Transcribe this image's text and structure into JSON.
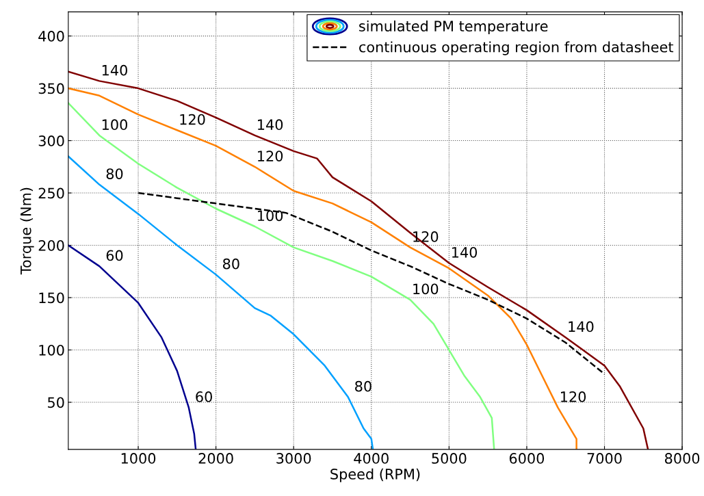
{
  "chart_data": {
    "type": "line",
    "xlabel": "Speed (RPM)",
    "ylabel": "Torque (Nm)",
    "xlim": [
      100,
      8000
    ],
    "ylim": [
      5,
      423
    ],
    "xticks": [
      1000,
      2000,
      3000,
      4000,
      5000,
      6000,
      7000,
      8000
    ],
    "yticks": [
      50,
      100,
      150,
      200,
      250,
      300,
      350,
      400
    ],
    "grid": true,
    "legend": "top right",
    "legend_title": "simulated PM temperature",
    "marker": "none",
    "series": [
      {
        "color": "#00008f",
        "line_style": "solid",
        "x": [
          100,
          500,
          1000,
          1300,
          1500,
          1650,
          1720,
          1740
        ],
        "values": [
          200,
          180,
          145,
          112,
          80,
          45,
          20,
          5
        ]
      },
      {
        "color": "#00a0ff",
        "line_style": "solid",
        "x": [
          100,
          500,
          1000,
          1500,
          2000,
          2500,
          2700,
          3000,
          3400,
          3700,
          3900,
          4000,
          4020
        ],
        "values": [
          285,
          258,
          230,
          200,
          172,
          140,
          133,
          115,
          85,
          55,
          25,
          15,
          5
        ]
      },
      {
        "color": "#80ff80",
        "line_style": "solid",
        "x": [
          100,
          500,
          1000,
          1500,
          2000,
          2500,
          3000,
          3500,
          4000,
          4500,
          4800,
          5000,
          5200,
          5400,
          5550,
          5580
        ],
        "values": [
          336,
          305,
          278,
          255,
          235,
          218,
          198,
          185,
          170,
          148,
          125,
          100,
          75,
          55,
          35,
          5
        ]
      },
      {
        "color": "#ff8000",
        "line_style": "solid",
        "x": [
          100,
          500,
          1000,
          1500,
          2000,
          2500,
          3000,
          3500,
          4000,
          4500,
          5000,
          5500,
          5800,
          6000,
          6200,
          6400,
          6640,
          6640
        ],
        "values": [
          350,
          343,
          325,
          310,
          295,
          275,
          252,
          240,
          222,
          198,
          178,
          152,
          130,
          105,
          75,
          45,
          15,
          5
        ]
      },
      {
        "color": "#800000",
        "line_style": "solid",
        "x": [
          100,
          500,
          1000,
          1500,
          2000,
          2500,
          3000,
          3300,
          3500,
          4000,
          4500,
          5000,
          5500,
          6000,
          6500,
          7000,
          7200,
          7500,
          7560
        ],
        "values": [
          366,
          357,
          350,
          338,
          322,
          305,
          290,
          283,
          265,
          242,
          212,
          183,
          160,
          138,
          112,
          85,
          65,
          25,
          5
        ]
      },
      {
        "name": "continuous operating region from datasheet",
        "color": "#000000",
        "line_style": "dashed",
        "x": [
          1000,
          1500,
          2000,
          2500,
          2900,
          3500,
          4000,
          4500,
          5000,
          5500,
          6000,
          6500,
          7000
        ],
        "values": [
          250,
          245,
          240,
          235,
          231,
          213,
          195,
          180,
          163,
          148,
          130,
          107,
          77
        ]
      }
    ],
    "annotations": [
      {
        "text": "60",
        "x": 500,
        "y": 180
      },
      {
        "text": "60",
        "x": 1650,
        "y": 45
      },
      {
        "text": "80",
        "x": 500,
        "y": 258
      },
      {
        "text": "80",
        "x": 2000,
        "y": 172
      },
      {
        "text": "80",
        "x": 3700,
        "y": 55
      },
      {
        "text": "100",
        "x": 500,
        "y": 305
      },
      {
        "text": "100",
        "x": 2500,
        "y": 218
      },
      {
        "text": "100",
        "x": 4500,
        "y": 148
      },
      {
        "text": "120",
        "x": 1500,
        "y": 310
      },
      {
        "text": "120",
        "x": 2500,
        "y": 275
      },
      {
        "text": "120",
        "x": 4500,
        "y": 198
      },
      {
        "text": "120",
        "x": 6400,
        "y": 45
      },
      {
        "text": "140",
        "x": 500,
        "y": 357
      },
      {
        "text": "140",
        "x": 2500,
        "y": 305
      },
      {
        "text": "140",
        "x": 5000,
        "y": 183
      },
      {
        "text": "140",
        "x": 6500,
        "y": 112
      }
    ]
  }
}
